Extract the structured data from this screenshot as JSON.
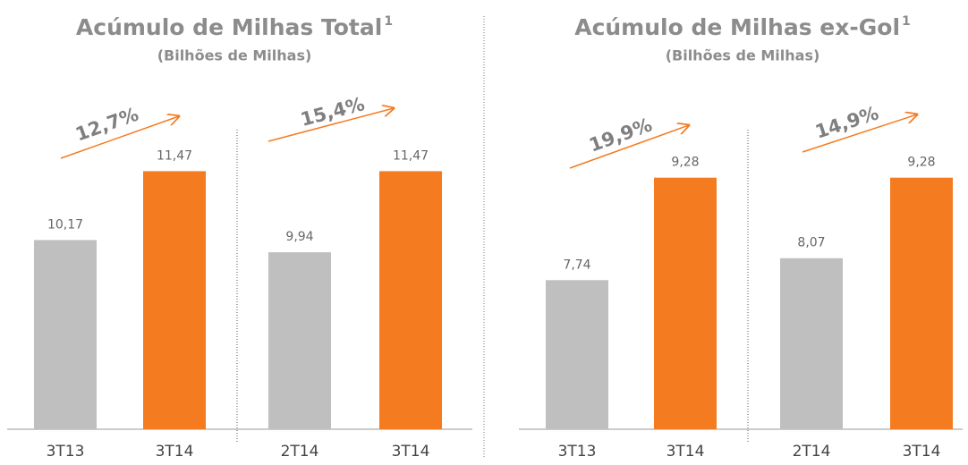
{
  "chart_data": [
    {
      "type": "bar",
      "title": "Acúmulo de Milhas Total",
      "title_note": "1",
      "subtitle": "(Bilhões de Milhas)",
      "categories": [
        "3T13",
        "3T14"
      ],
      "values": [
        10.17,
        11.47
      ],
      "value_labels": [
        "10,17",
        "11,47"
      ],
      "colors": [
        "#bfbfbf",
        "#f47b20"
      ],
      "ylim": [
        6.6,
        12
      ],
      "annotation": "12,7%"
    },
    {
      "type": "bar",
      "categories": [
        "2T14",
        "3T14"
      ],
      "values": [
        9.94,
        11.47
      ],
      "value_labels": [
        "9,94",
        "11,47"
      ],
      "colors": [
        "#bfbfbf",
        "#f47b20"
      ],
      "ylim": [
        6.6,
        12
      ],
      "annotation": "15,4%"
    },
    {
      "type": "bar",
      "title": "Acúmulo de Milhas ex-Gol",
      "title_note": "1",
      "subtitle": "(Bilhões de Milhas)",
      "categories": [
        "3T13",
        "3T14"
      ],
      "values": [
        7.74,
        9.28
      ],
      "value_labels": [
        "7,74",
        "9,28"
      ],
      "colors": [
        "#bfbfbf",
        "#f47b20"
      ],
      "ylim": [
        5.5,
        9.8
      ],
      "annotation": "19,9%"
    },
    {
      "type": "bar",
      "categories": [
        "2T14",
        "3T14"
      ],
      "values": [
        8.07,
        9.28
      ],
      "value_labels": [
        "8,07",
        "9,28"
      ],
      "colors": [
        "#bfbfbf",
        "#f47b20"
      ],
      "ylim": [
        5.5,
        9.8
      ],
      "annotation": "14,9%"
    }
  ]
}
